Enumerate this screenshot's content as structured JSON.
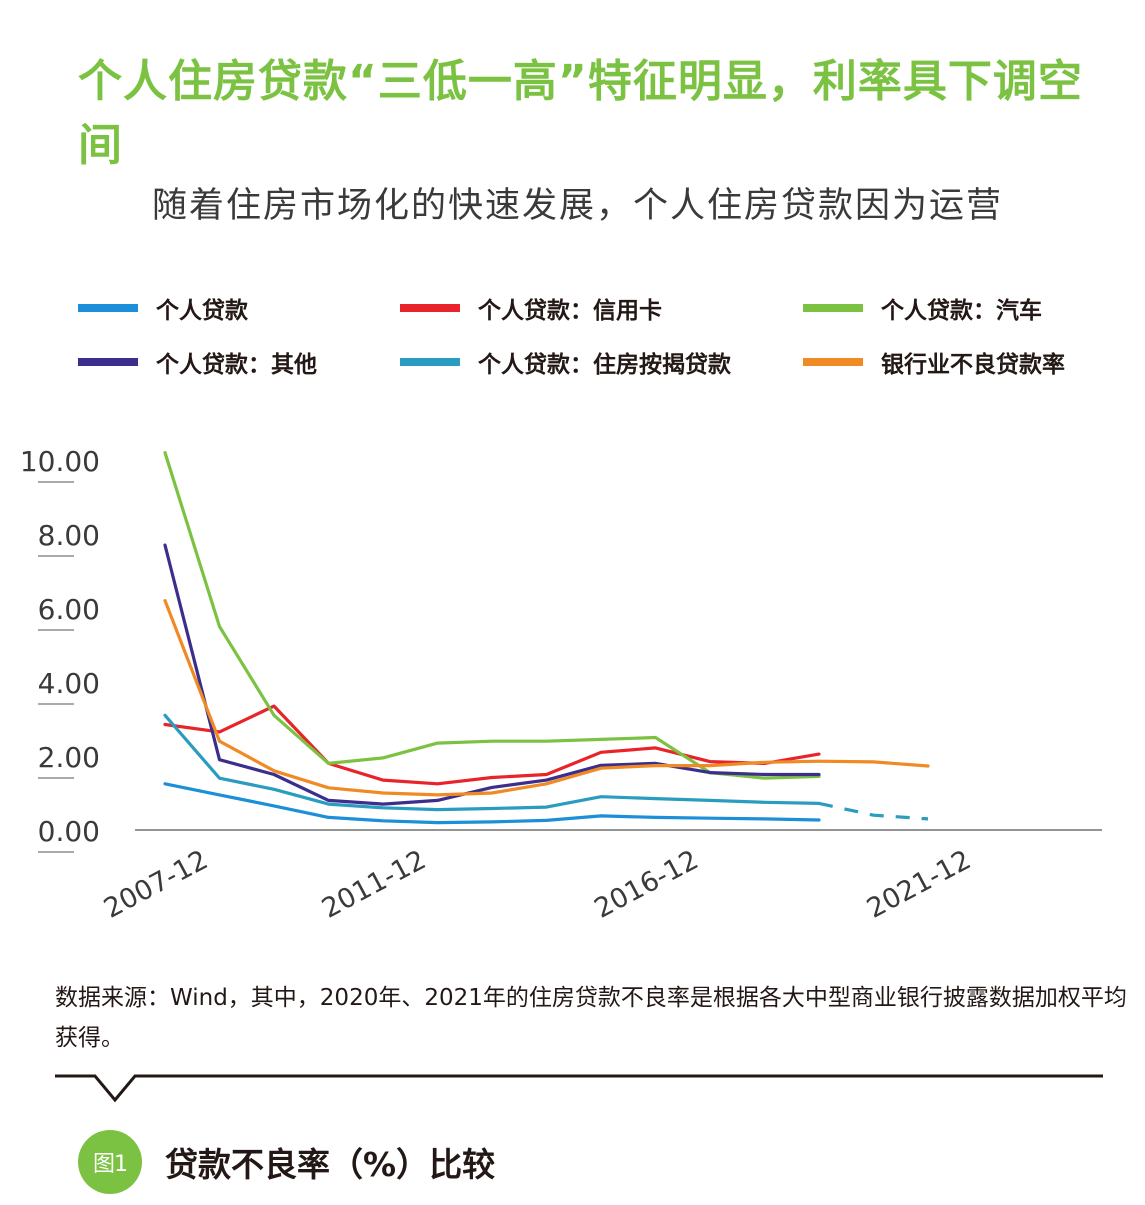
{
  "title": "个人住房贷款“三低一高”特征明显，利率具下调空间",
  "intro": "随着住房市场化的快速发展，个人住房贷款因为运营",
  "source_note": "数据来源：Wind，其中，2020年、2021年的住房贷款不良率是根据各大中型商业银行披露数据加权平均获得。",
  "figure": {
    "badge": "图1",
    "caption": "贷款不良率（%）比较"
  },
  "colors": {
    "accent": "#7cc242"
  },
  "chart_data": {
    "type": "line",
    "title": "",
    "xlabel": "",
    "ylabel": "",
    "ylim": [
      0,
      10
    ],
    "grid": false,
    "legend_position": "top",
    "yticks": [
      "10.00",
      "8.00",
      "6.00",
      "4.00",
      "2.00",
      "0.00"
    ],
    "x": [
      "2007-12",
      "2008-12",
      "2009-12",
      "2010-12",
      "2011-12",
      "2012-12",
      "2013-12",
      "2014-12",
      "2015-12",
      "2016-12",
      "2017-12",
      "2018-12",
      "2019-12",
      "2020-12",
      "2021-12"
    ],
    "xtick_labels": [
      "2007-12",
      "2011-12",
      "2016-12",
      "2021-12"
    ],
    "series": [
      {
        "name": "个人贷款",
        "color": "#1c8fd8",
        "dashed_from_index": null,
        "values": [
          1.25,
          0.95,
          0.65,
          0.34,
          0.25,
          0.2,
          0.22,
          0.26,
          0.38,
          0.34,
          0.32,
          0.3,
          0.27,
          null,
          null
        ]
      },
      {
        "name": "个人贷款：信用卡",
        "color": "#e8242a",
        "dashed_from_index": null,
        "values": [
          2.85,
          2.65,
          3.35,
          1.8,
          1.35,
          1.25,
          1.42,
          1.5,
          2.1,
          2.22,
          1.85,
          1.8,
          2.05,
          null,
          null
        ]
      },
      {
        "name": "个人贷款：汽车",
        "color": "#7cc242",
        "dashed_from_index": null,
        "values": [
          10.2,
          5.5,
          3.1,
          1.8,
          1.95,
          2.35,
          2.4,
          2.4,
          2.45,
          2.5,
          1.55,
          1.4,
          1.45,
          null,
          null
        ]
      },
      {
        "name": "个人贷款：其他",
        "color": "#3b2e8c",
        "dashed_from_index": null,
        "values": [
          7.7,
          1.9,
          1.5,
          0.8,
          0.7,
          0.8,
          1.15,
          1.35,
          1.75,
          1.8,
          1.55,
          1.5,
          1.5,
          null,
          null
        ]
      },
      {
        "name": "个人贷款：住房按揭贷款",
        "color": "#2a9cc0",
        "dashed_from_index": 12,
        "values": [
          3.1,
          1.4,
          1.1,
          0.7,
          0.6,
          0.55,
          0.58,
          0.62,
          0.9,
          0.85,
          0.8,
          0.75,
          0.72,
          0.4,
          0.3
        ]
      },
      {
        "name": "银行业不良贷款率",
        "color": "#f08a24",
        "dashed_from_index": null,
        "values": [
          6.2,
          2.4,
          1.6,
          1.14,
          1.0,
          0.95,
          1.0,
          1.25,
          1.67,
          1.74,
          1.74,
          1.83,
          1.86,
          1.84,
          1.73
        ]
      }
    ]
  }
}
